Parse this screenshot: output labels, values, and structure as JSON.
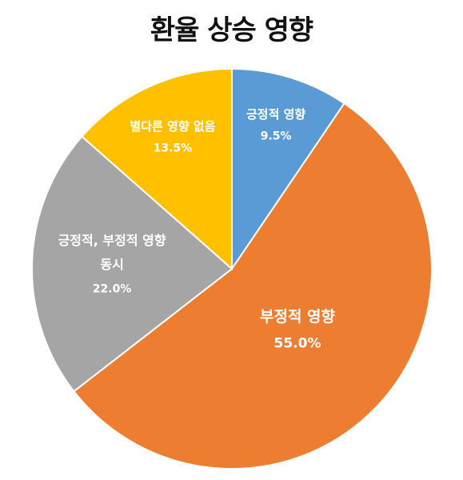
{
  "chart_data": {
    "type": "pie",
    "title": "환율 상승 영향",
    "slices": [
      {
        "label": "긍정적 영향",
        "label_lines": [
          "긍정적 영향"
        ],
        "value": 9.5,
        "value_label": "9.5%",
        "color": "#5B9BD5"
      },
      {
        "label": "부정적 영향",
        "label_lines": [
          "부정적 영향"
        ],
        "value": 55.0,
        "value_label": "55.0%",
        "color": "#ED7D31"
      },
      {
        "label": "긍정적, 부정적 영향 동시",
        "label_lines": [
          "긍정적, 부정적 영향",
          "동시"
        ],
        "value": 22.0,
        "value_label": "22.0%",
        "color": "#A5A5A5"
      },
      {
        "label": "별다른 영향 없음",
        "label_lines": [
          "별다른 영향 없음"
        ],
        "value": 13.5,
        "value_label": "13.5%",
        "color": "#FFC000"
      }
    ],
    "start_angle": "12 o'clock",
    "direction": "clockwise",
    "legend": "none"
  }
}
